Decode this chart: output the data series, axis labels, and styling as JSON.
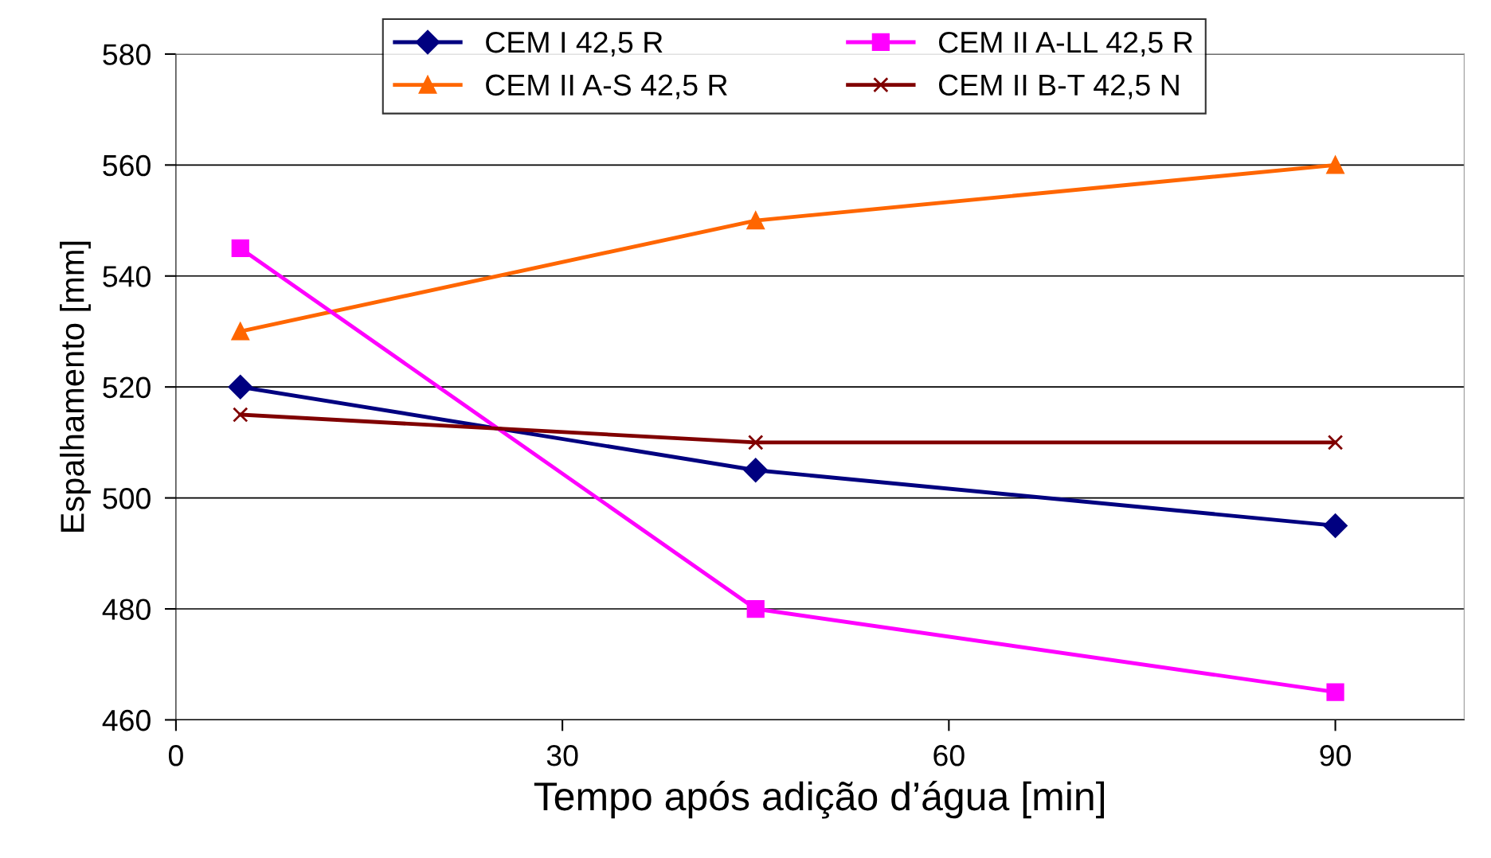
{
  "chart_data": {
    "type": "line",
    "xlabel": "Tempo após adição d’água [min]",
    "ylabel": "Espalhamento [mm]",
    "x": [
      5,
      45,
      90
    ],
    "xlim": [
      0,
      100
    ],
    "xticks": [
      0,
      30,
      60,
      90
    ],
    "ylim": [
      460,
      580
    ],
    "yticks": [
      460,
      480,
      500,
      520,
      540,
      560,
      580
    ],
    "grid": "y",
    "legend": "top",
    "series": [
      {
        "name": "CEM I 42,5 R",
        "color": "#000080",
        "marker": "diamond",
        "values": [
          520,
          505,
          495
        ]
      },
      {
        "name": "CEM II A-S 42,5 R",
        "color": "#ff6600",
        "marker": "triangle",
        "values": [
          530,
          550,
          560
        ]
      },
      {
        "name": "CEM II A-LL 42,5 R",
        "color": "#ff00ff",
        "marker": "square",
        "values": [
          545,
          480,
          465
        ]
      },
      {
        "name": "CEM II B-T 42,5 N",
        "color": "#800000",
        "marker": "cross",
        "values": [
          515,
          510,
          510
        ]
      }
    ]
  }
}
